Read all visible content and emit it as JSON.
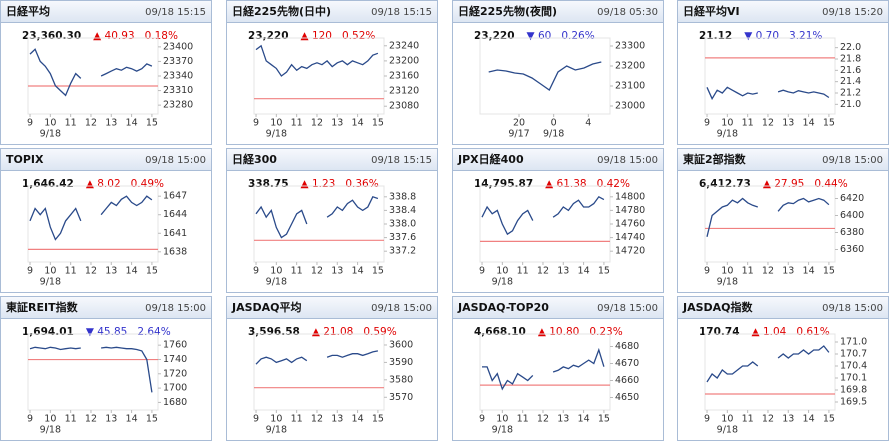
{
  "chart_data": [
    {
      "type": "line",
      "title": "日経平均",
      "timestamp": "09/18 15:15",
      "price": "23,360.30",
      "change": "▲ 40.93",
      "change_pct": "0.18%",
      "change_color": "#e00000",
      "x": [
        9,
        9.25,
        9.5,
        9.75,
        10,
        10.25,
        10.5,
        10.75,
        11,
        11.25,
        11.5,
        12,
        12.5,
        12.75,
        13,
        13.25,
        13.5,
        13.75,
        14,
        14.25,
        14.5,
        14.75,
        15
      ],
      "values": [
        23385,
        23395,
        23370,
        23360,
        23345,
        23320,
        23310,
        23300,
        23325,
        23345,
        23335,
        null,
        23340,
        23345,
        23350,
        23355,
        23352,
        23358,
        23355,
        23350,
        23355,
        23365,
        23360.3
      ],
      "xlim": [
        8.9,
        15.3
      ],
      "xticks": [
        9,
        10,
        11,
        12,
        13,
        14,
        15
      ],
      "date_labels": [
        {
          "value": 10,
          "label": "9/18"
        }
      ],
      "ylim": [
        23270,
        23410
      ],
      "yticks": [
        23280,
        23310,
        23340,
        23370,
        23400
      ],
      "reference": 23319.37,
      "color": "#2a4a8a",
      "reference_color": "#f08080"
    },
    {
      "type": "line",
      "title": "日経225先物(日中)",
      "timestamp": "09/18 15:15",
      "price": "23,220",
      "change": "▲ 120",
      "change_pct": "0.52%",
      "change_color": "#e00000",
      "x": [
        9,
        9.25,
        9.5,
        9.75,
        10,
        10.25,
        10.5,
        10.75,
        11,
        11.25,
        11.5,
        11.75,
        12,
        12.25,
        12.5,
        12.75,
        13,
        13.25,
        13.5,
        13.75,
        14,
        14.25,
        14.5,
        14.75,
        15
      ],
      "values": [
        23230,
        23240,
        23200,
        23190,
        23180,
        23160,
        23170,
        23190,
        23175,
        23185,
        23180,
        23190,
        23195,
        23190,
        23200,
        23185,
        23195,
        23200,
        23190,
        23200,
        23195,
        23190,
        23200,
        23215,
        23220
      ],
      "xlim": [
        8.9,
        15.3
      ],
      "xticks": [
        9,
        10,
        11,
        12,
        13,
        14,
        15
      ],
      "date_labels": [
        {
          "value": 10,
          "label": "9/18"
        }
      ],
      "ylim": [
        23070,
        23250
      ],
      "yticks": [
        23080,
        23120,
        23160,
        23200,
        23240
      ],
      "reference": 23100,
      "color": "#2a4a8a",
      "reference_color": "#f08080"
    },
    {
      "type": "line",
      "title": "日経225先物(夜間)",
      "timestamp": "09/18 05:30",
      "price": "23,220",
      "change": "▼ 60",
      "change_pct": "0.26%",
      "change_color": "#3333cc",
      "x": [
        16.5,
        17.5,
        18.5,
        19.5,
        20.5,
        21.5,
        22.5,
        23.5,
        24.5,
        25.5,
        26.5,
        27.5,
        28.5,
        29.5
      ],
      "values": [
        23170,
        23180,
        23175,
        23165,
        23160,
        23140,
        23110,
        23080,
        23170,
        23200,
        23180,
        23190,
        23210,
        23220
      ],
      "xlim": [
        15.5,
        30.5
      ],
      "xticks": [
        20,
        {
          "value": 24,
          "label": "0"
        },
        {
          "value": 28,
          "label": "4"
        }
      ],
      "date_labels": [
        {
          "value": 20,
          "label": "9/17"
        },
        {
          "value": 24,
          "label": "9/18"
        }
      ],
      "ylim": [
        22980,
        23320
      ],
      "yticks": [
        23000,
        23100,
        23200,
        23300
      ],
      "color": "#2a4a8a"
    },
    {
      "type": "line",
      "title": "日経平均VI",
      "timestamp": "09/18 15:20",
      "price": "21.12",
      "change": "▼ 0.70",
      "change_pct": "3.21%",
      "change_color": "#3333cc",
      "x": [
        9,
        9.25,
        9.5,
        9.75,
        10,
        10.25,
        10.5,
        10.75,
        11,
        11.25,
        11.5,
        12,
        12.5,
        12.75,
        13,
        13.25,
        13.5,
        13.75,
        14,
        14.25,
        14.5,
        14.75,
        15
      ],
      "values": [
        21.3,
        21.1,
        21.25,
        21.2,
        21.3,
        21.25,
        21.2,
        21.15,
        21.2,
        21.18,
        21.2,
        null,
        21.22,
        21.25,
        21.22,
        21.2,
        21.24,
        21.22,
        21.2,
        21.22,
        21.2,
        21.18,
        21.12
      ],
      "xlim": [
        8.9,
        15.3
      ],
      "xticks": [
        9,
        10,
        11,
        12,
        13,
        14,
        15
      ],
      "date_labels": [
        {
          "value": 10,
          "label": "9/18"
        }
      ],
      "ylim": [
        20.9,
        22.1
      ],
      "yticks": [
        {
          "value": 21,
          "label": "21.0"
        },
        21.2,
        21.4,
        21.6,
        21.8,
        {
          "value": 22,
          "label": "22.0"
        }
      ],
      "reference": 21.82,
      "color": "#2a4a8a",
      "reference_color": "#f08080"
    },
    {
      "type": "line",
      "title": "TOPIX",
      "timestamp": "09/18 15:00",
      "price": "1,646.42",
      "change": "▲ 8.02",
      "change_pct": "0.49%",
      "change_color": "#e00000",
      "x": [
        9,
        9.25,
        9.5,
        9.75,
        10,
        10.25,
        10.5,
        10.75,
        11,
        11.25,
        11.5,
        12,
        12.5,
        12.75,
        13,
        13.25,
        13.5,
        13.75,
        14,
        14.25,
        14.5,
        14.75,
        15
      ],
      "values": [
        1643,
        1645,
        1644,
        1645,
        1642,
        1640,
        1641,
        1643,
        1644,
        1645,
        1643,
        null,
        1644,
        1645,
        1646,
        1645.5,
        1646.5,
        1647,
        1646,
        1645.5,
        1646,
        1647,
        1646.4
      ],
      "xlim": [
        8.9,
        15.3
      ],
      "xticks": [
        9,
        10,
        11,
        12,
        13,
        14,
        15
      ],
      "date_labels": [
        {
          "value": 10,
          "label": "9/18"
        }
      ],
      "ylim": [
        1637,
        1648
      ],
      "yticks": [
        1638,
        1641,
        1644,
        1647
      ],
      "reference": 1638.4,
      "color": "#2a4a8a",
      "reference_color": "#f08080"
    },
    {
      "type": "line",
      "title": "日経300",
      "timestamp": "09/18 15:15",
      "price": "338.75",
      "change": "▲ 1.23",
      "change_pct": "0.36%",
      "change_color": "#e00000",
      "x": [
        9,
        9.25,
        9.5,
        9.75,
        10,
        10.25,
        10.5,
        10.75,
        11,
        11.25,
        11.5,
        12,
        12.5,
        12.75,
        13,
        13.25,
        13.5,
        13.75,
        14,
        14.25,
        14.5,
        14.75,
        15
      ],
      "values": [
        338.3,
        338.5,
        338.2,
        338.4,
        337.9,
        337.6,
        337.7,
        338.0,
        338.3,
        338.4,
        338.0,
        null,
        338.2,
        338.3,
        338.5,
        338.4,
        338.6,
        338.7,
        338.5,
        338.4,
        338.5,
        338.8,
        338.75
      ],
      "xlim": [
        8.9,
        15.3
      ],
      "xticks": [
        9,
        10,
        11,
        12,
        13,
        14,
        15
      ],
      "date_labels": [
        {
          "value": 10,
          "label": "9/18"
        }
      ],
      "ylim": [
        337.0,
        339.0
      ],
      "yticks": [
        337.2,
        337.6,
        {
          "value": 338,
          "label": "338.0"
        },
        338.4,
        338.8
      ],
      "reference": 337.52,
      "color": "#2a4a8a",
      "reference_color": "#f08080"
    },
    {
      "type": "line",
      "title": "JPX日経400",
      "timestamp": "09/18 15:00",
      "price": "14,795.87",
      "change": "▲ 61.38",
      "change_pct": "0.42%",
      "change_color": "#e00000",
      "x": [
        9,
        9.25,
        9.5,
        9.75,
        10,
        10.25,
        10.5,
        10.75,
        11,
        11.25,
        11.5,
        12,
        12.5,
        12.75,
        13,
        13.25,
        13.5,
        13.75,
        14,
        14.25,
        14.5,
        14.75,
        15
      ],
      "values": [
        14770,
        14785,
        14775,
        14780,
        14760,
        14745,
        14750,
        14765,
        14775,
        14780,
        14765,
        null,
        14770,
        14775,
        14785,
        14780,
        14790,
        14795,
        14785,
        14785,
        14790,
        14800,
        14795.87
      ],
      "xlim": [
        8.9,
        15.3
      ],
      "xticks": [
        9,
        10,
        11,
        12,
        13,
        14,
        15
      ],
      "date_labels": [
        {
          "value": 10,
          "label": "9/18"
        }
      ],
      "ylim": [
        14710,
        14810
      ],
      "yticks": [
        14720,
        14740,
        14760,
        14780,
        14800
      ],
      "reference": 14734.49,
      "color": "#2a4a8a",
      "reference_color": "#f08080"
    },
    {
      "type": "line",
      "title": "東証2部指数",
      "timestamp": "09/18 15:00",
      "price": "6,412.73",
      "change": "▲ 27.95",
      "change_pct": "0.44%",
      "change_color": "#e00000",
      "x": [
        9,
        9.25,
        9.5,
        9.75,
        10,
        10.25,
        10.5,
        10.75,
        11,
        11.25,
        11.5,
        12,
        12.5,
        12.75,
        13,
        13.25,
        13.5,
        13.75,
        14,
        14.25,
        14.5,
        14.75,
        15
      ],
      "values": [
        6375,
        6400,
        6405,
        6410,
        6412,
        6418,
        6415,
        6420,
        6415,
        6412,
        6410,
        null,
        6405,
        6412,
        6415,
        6414,
        6418,
        6420,
        6416,
        6418,
        6420,
        6418,
        6412.73
      ],
      "xlim": [
        8.9,
        15.3
      ],
      "xticks": [
        9,
        10,
        11,
        12,
        13,
        14,
        15
      ],
      "date_labels": [
        {
          "value": 10,
          "label": "9/18"
        }
      ],
      "ylim": [
        6350,
        6430
      ],
      "yticks": [
        6360,
        6380,
        6400,
        6420
      ],
      "reference": 6384.78,
      "color": "#2a4a8a",
      "reference_color": "#f08080"
    },
    {
      "type": "line",
      "title": "東証REIT指数",
      "timestamp": "09/18 15:00",
      "price": "1,694.01",
      "change": "▼ 45.85",
      "change_pct": "2.64%",
      "change_color": "#3333cc",
      "x": [
        9,
        9.25,
        9.5,
        9.75,
        10,
        10.25,
        10.5,
        10.75,
        11,
        11.25,
        11.5,
        12,
        12.5,
        12.75,
        13,
        13.25,
        13.5,
        13.75,
        14,
        14.25,
        14.5,
        14.75,
        15
      ],
      "values": [
        1755,
        1757,
        1756,
        1755,
        1757,
        1756,
        1754,
        1755,
        1756,
        1755,
        1756,
        null,
        1756,
        1757,
        1756,
        1757,
        1756,
        1755,
        1755,
        1754,
        1752,
        1740,
        1694.01
      ],
      "xlim": [
        8.9,
        15.3
      ],
      "xticks": [
        9,
        10,
        11,
        12,
        13,
        14,
        15
      ],
      "date_labels": [
        {
          "value": 10,
          "label": "9/18"
        }
      ],
      "ylim": [
        1675,
        1770
      ],
      "yticks": [
        1680,
        1700,
        1720,
        1740,
        1760
      ],
      "reference": 1739.86,
      "color": "#2a4a8a",
      "reference_color": "#f08080"
    },
    {
      "type": "line",
      "title": "JASDAQ平均",
      "timestamp": "09/18 15:00",
      "price": "3,596.58",
      "change": "▲ 21.08",
      "change_pct": "0.59%",
      "change_color": "#e00000",
      "x": [
        9,
        9.25,
        9.5,
        9.75,
        10,
        10.25,
        10.5,
        10.75,
        11,
        11.25,
        11.5,
        12,
        12.5,
        12.75,
        13,
        13.25,
        13.5,
        13.75,
        14,
        14.25,
        14.5,
        14.75,
        15
      ],
      "values": [
        3589,
        3592,
        3593,
        3592,
        3590,
        3591,
        3592,
        3590,
        3592,
        3593,
        3591,
        null,
        3593,
        3594,
        3594,
        3593,
        3594,
        3595,
        3595,
        3594,
        3595,
        3596,
        3596.58
      ],
      "xlim": [
        8.9,
        15.3
      ],
      "xticks": [
        9,
        10,
        11,
        12,
        13,
        14,
        15
      ],
      "date_labels": [
        {
          "value": 10,
          "label": "9/18"
        }
      ],
      "ylim": [
        3565,
        3604
      ],
      "yticks": [
        3570,
        3580,
        3590,
        3600
      ],
      "reference": 3575.5,
      "color": "#2a4a8a",
      "reference_color": "#f08080"
    },
    {
      "type": "line",
      "title": "JASDAQ-TOP20",
      "timestamp": "09/18 15:00",
      "price": "4,668.10",
      "change": "▲ 10.80",
      "change_pct": "0.23%",
      "change_color": "#e00000",
      "x": [
        9,
        9.25,
        9.5,
        9.75,
        10,
        10.25,
        10.5,
        10.75,
        11,
        11.25,
        11.5,
        12,
        12.5,
        12.75,
        13,
        13.25,
        13.5,
        13.75,
        14,
        14.25,
        14.5,
        14.75,
        15
      ],
      "values": [
        4668,
        4668,
        4660,
        4664,
        4655,
        4660,
        4658,
        4664,
        4662,
        4660,
        4663,
        null,
        4665,
        4666,
        4668,
        4667,
        4669,
        4668,
        4670,
        4672,
        4670,
        4678,
        4668.1
      ],
      "xlim": [
        8.9,
        15.3
      ],
      "xticks": [
        9,
        10,
        11,
        12,
        13,
        14,
        15
      ],
      "date_labels": [
        {
          "value": 10,
          "label": "9/18"
        }
      ],
      "ylim": [
        4645,
        4685
      ],
      "yticks": [
        4650,
        4660,
        4670,
        4680
      ],
      "reference": 4657.3,
      "color": "#2a4a8a",
      "reference_color": "#f08080"
    },
    {
      "type": "line",
      "title": "JASDAQ指数",
      "timestamp": "09/18 15:00",
      "price": "170.74",
      "change": "▲ 1.04",
      "change_pct": "0.61%",
      "change_color": "#e00000",
      "x": [
        9,
        9.25,
        9.5,
        9.75,
        10,
        10.25,
        10.5,
        10.75,
        11,
        11.25,
        11.5,
        12,
        12.5,
        12.75,
        13,
        13.25,
        13.5,
        13.75,
        14,
        14.25,
        14.5,
        14.75,
        15
      ],
      "values": [
        170.0,
        170.2,
        170.1,
        170.3,
        170.2,
        170.2,
        170.3,
        170.4,
        170.4,
        170.5,
        170.4,
        null,
        170.6,
        170.7,
        170.6,
        170.7,
        170.7,
        170.8,
        170.7,
        170.8,
        170.8,
        170.9,
        170.74
      ],
      "xlim": [
        8.9,
        15.3
      ],
      "xticks": [
        9,
        10,
        11,
        12,
        13,
        14,
        15
      ],
      "date_labels": [
        {
          "value": 10,
          "label": "9/18"
        }
      ],
      "ylim": [
        169.4,
        171.1
      ],
      "yticks": [
        169.5,
        169.8,
        170.1,
        170.4,
        170.7,
        {
          "value": 171,
          "label": "171.0"
        }
      ],
      "reference": 169.7,
      "color": "#2a4a8a",
      "reference_color": "#f08080"
    }
  ]
}
